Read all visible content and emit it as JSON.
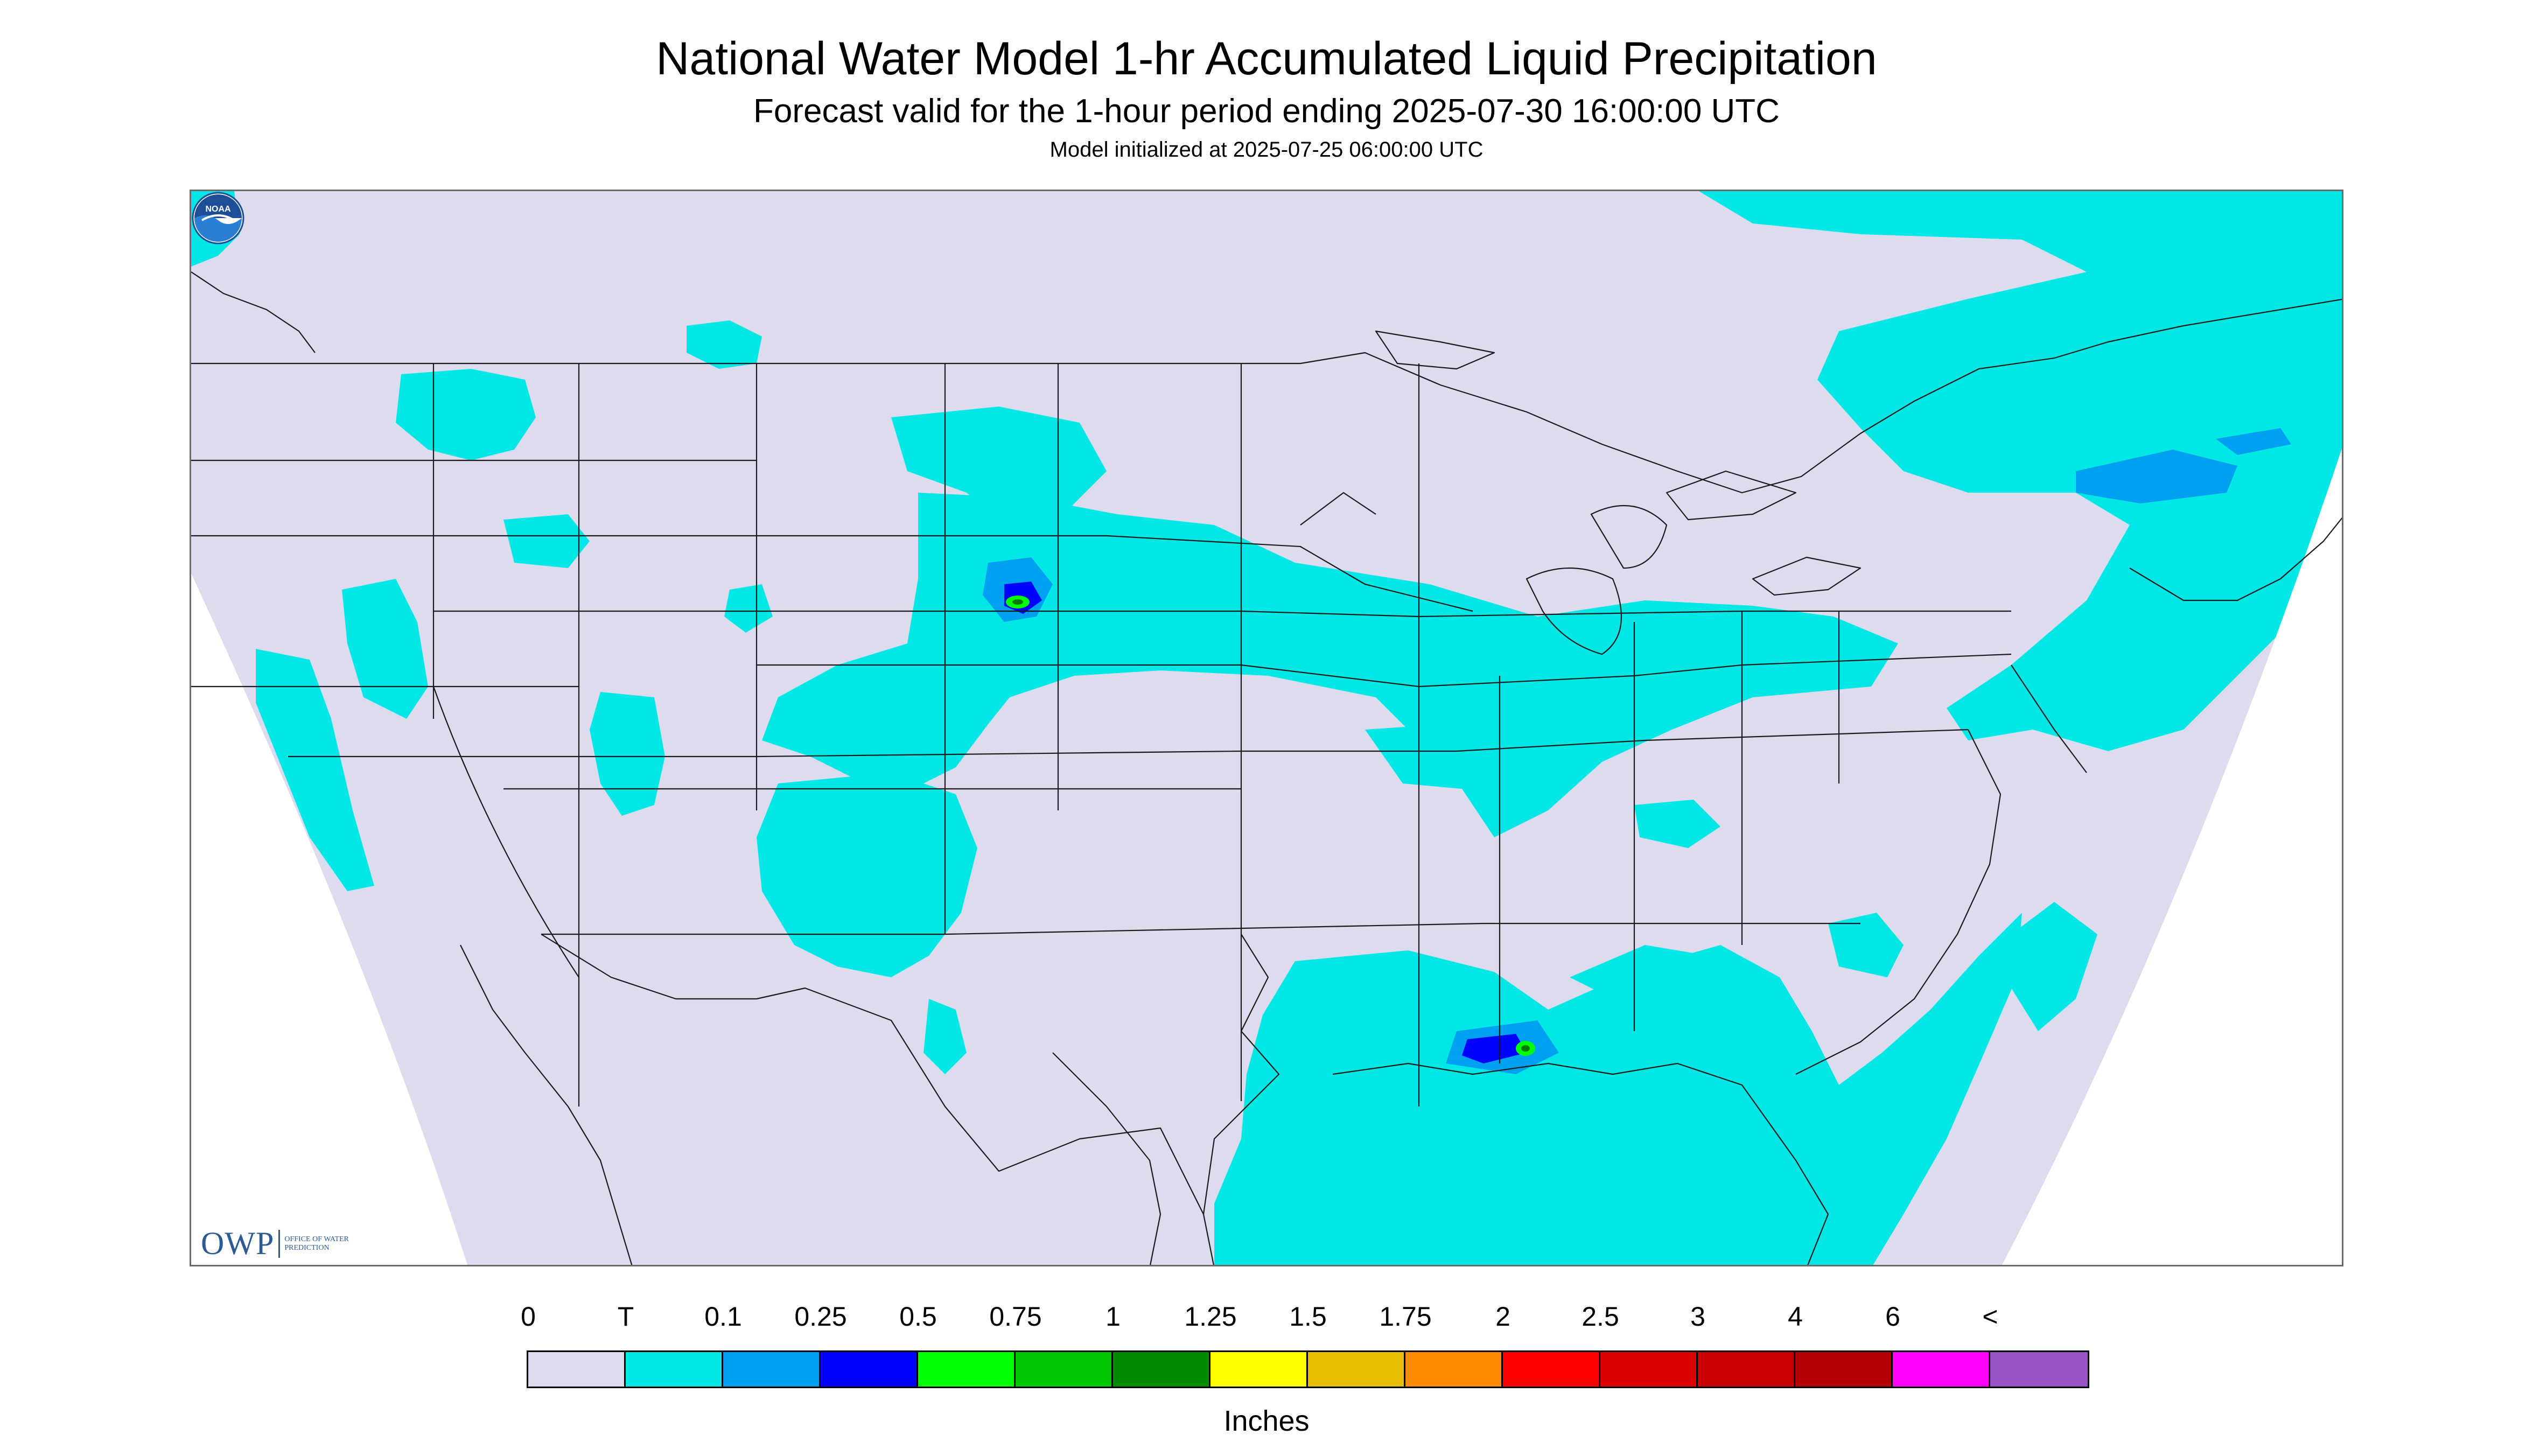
{
  "title": "National Water Model 1-hr Accumulated Liquid Precipitation",
  "subtitle": "Forecast valid for the 1-hour period ending 2025-07-30 16:00:00 UTC",
  "init_line": "Model initialized at 2025-07-25 06:00:00 UTC",
  "logos": {
    "owp_mark": "OWP",
    "owp_text": "OFFICE OF WATER PREDICTION",
    "noaa_text": "NOAA"
  },
  "colors": {
    "background": "#dcdcee",
    "trace": "#00e7e6",
    "light_blue": "#00a0f0",
    "blue": "#0000ff",
    "green": "#00ff00",
    "lines": "#1a1a1a"
  },
  "legend": {
    "labels": [
      "0",
      "T",
      "0.1",
      "0.25",
      "0.5",
      "0.75",
      "1",
      "1.25",
      "1.5",
      "1.75",
      "2",
      "2.5",
      "3",
      "4",
      "6",
      "<"
    ],
    "colors": [
      "#dcdcee",
      "#00e7e6",
      "#00a0f0",
      "#0000ff",
      "#00ff00",
      "#00c800",
      "#008c00",
      "#ffff00",
      "#e6c000",
      "#ff8c00",
      "#ff0000",
      "#dc0000",
      "#c80000",
      "#b40000",
      "#ff00ff",
      "#9955c8"
    ],
    "units": "Inches"
  }
}
